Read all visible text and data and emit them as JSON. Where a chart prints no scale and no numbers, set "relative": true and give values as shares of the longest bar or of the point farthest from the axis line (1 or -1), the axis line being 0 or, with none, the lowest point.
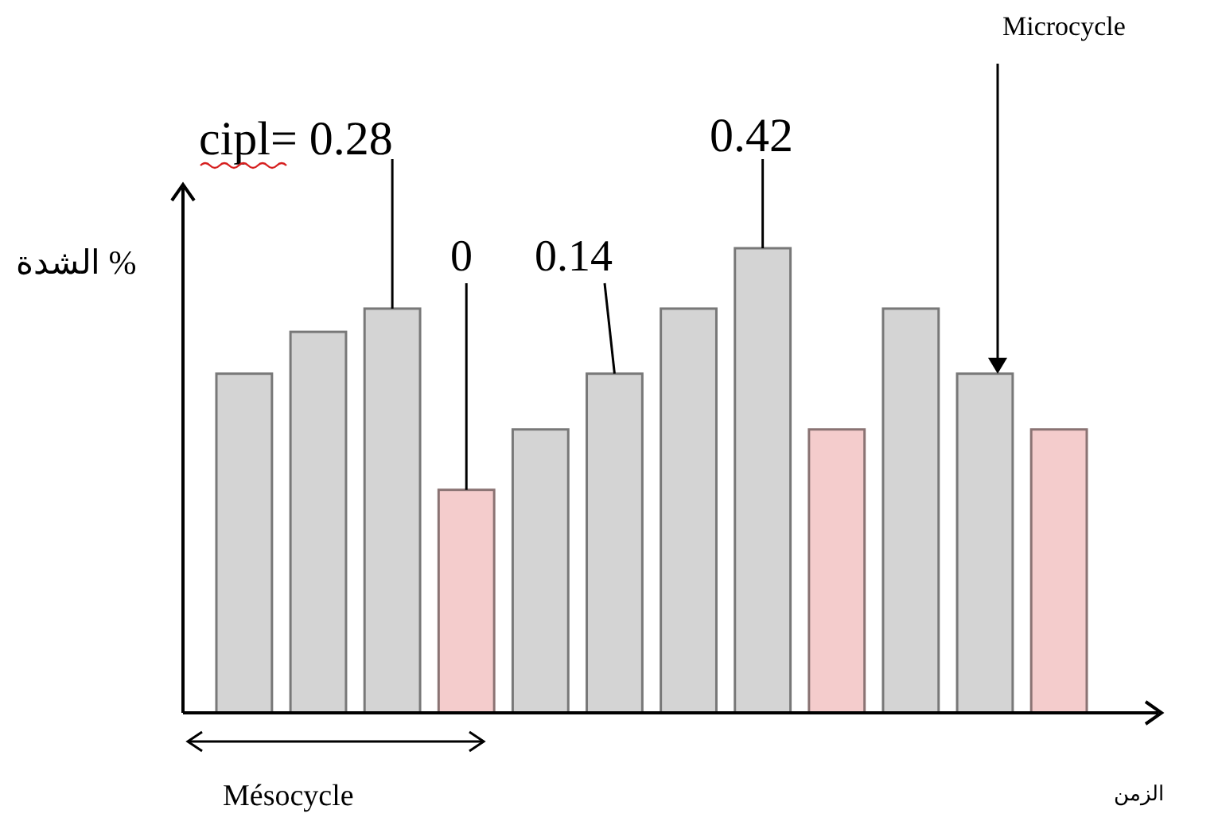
{
  "chart_data": {
    "type": "bar",
    "relative": true,
    "xlabel": "الزمن",
    "ylabel": "الشدة %",
    "categories": [
      null,
      null,
      null,
      null,
      null,
      null,
      null,
      null,
      null,
      null,
      null,
      null
    ],
    "values": [
      0.73,
      0.82,
      0.87,
      0.48,
      0.61,
      0.73,
      0.87,
      1,
      0.61,
      0.87,
      0.73,
      0.61
    ],
    "colors": [
      "#d4d4d4",
      "#d4d4d4",
      "#d4d4d4",
      "#f4cccc",
      "#d4d4d4",
      "#d4d4d4",
      "#d4d4d4",
      "#d4d4d4",
      "#f4cccc",
      "#d4d4d4",
      "#d4d4d4",
      "#f4cccc"
    ],
    "annotations": [
      "cipl= 0.28",
      "0",
      "0.14",
      "0.42",
      "Microcycle",
      "Mésocycle"
    ]
  }
}
